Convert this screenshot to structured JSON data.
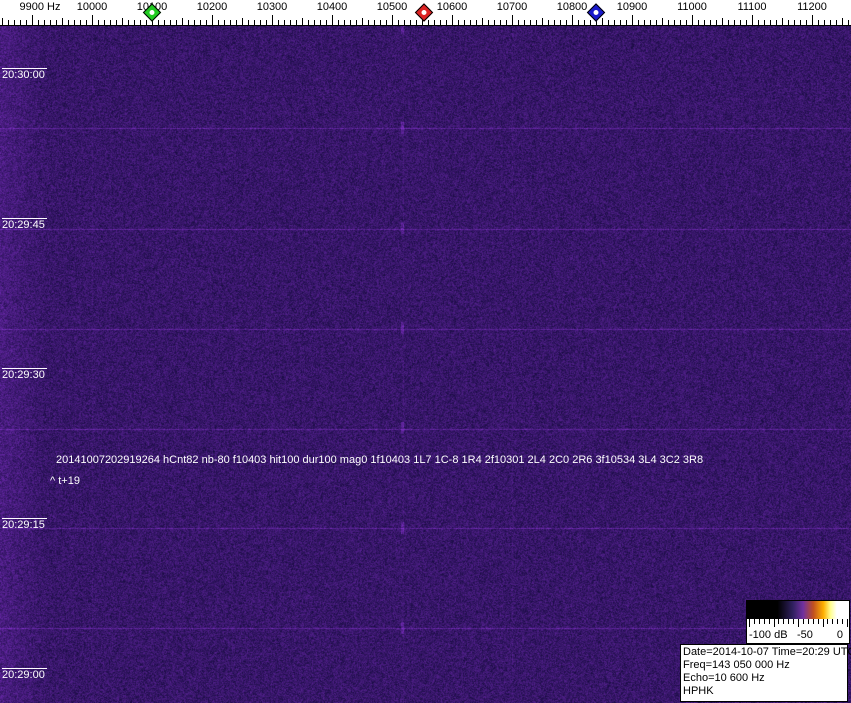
{
  "frequency_axis": {
    "labels": [
      "9900 Hz",
      "10000",
      "10100",
      "10200",
      "10300",
      "10400",
      "10500",
      "10600",
      "10700",
      "10800",
      "10900",
      "11000",
      "11100",
      "11200"
    ],
    "values": [
      9900,
      10000,
      10100,
      10200,
      10300,
      10400,
      10500,
      10600,
      10700,
      10800,
      10900,
      11000,
      11100,
      11200
    ]
  },
  "markers": [
    {
      "name": "green-marker",
      "freq": 10100,
      "color": "#22cc22"
    },
    {
      "name": "red-marker",
      "freq": 10553,
      "color": "#dd2222"
    },
    {
      "name": "blue-marker",
      "freq": 10840,
      "color": "#1a1acc"
    }
  ],
  "time_labels": [
    "20:30:00",
    "20:29:45",
    "20:29:30",
    "20:29:15",
    "20:29:00"
  ],
  "detection": {
    "line1": "20141007202919264 hCnt82 nb-80 f10403 hit100 dur100 mag0 1f10403 1L7 1C-8 1R4 2f10301 2L4 2C0 2R6 3f10534 3L4 3C2 3R8",
    "line2": "^ t+19"
  },
  "colorbar": {
    "labels": [
      "-100 dB",
      "-50",
      "0"
    ]
  },
  "info": {
    "date_time": "Date=2014-10-07 Time=20:29 UTC",
    "freq": "Freq=143 050 000 Hz",
    "echo": "Echo=10 600 Hz",
    "station": "HPHK"
  },
  "colors": {
    "background": "#2a1a6a",
    "trace": "#7a2a9a"
  }
}
